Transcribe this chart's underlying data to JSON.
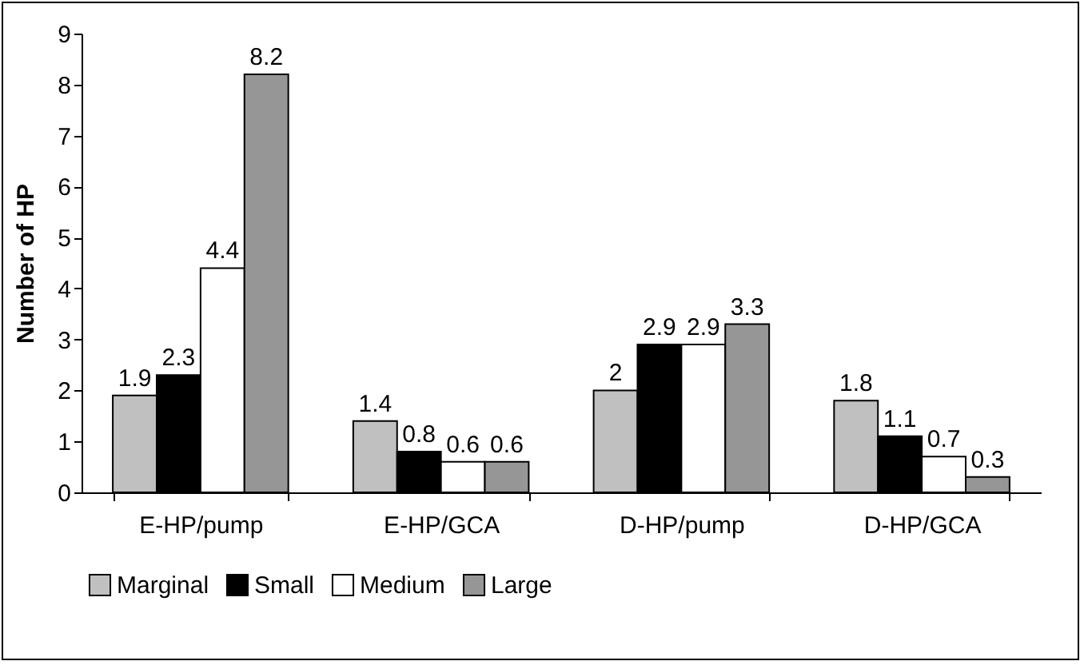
{
  "chart_data": {
    "type": "bar",
    "ylabel": "Number of HP",
    "categories": [
      "E-HP/pump",
      "E-HP/GCA",
      "D-HP/pump",
      "D-HP/GCA"
    ],
    "series": [
      {
        "name": "Marginal",
        "color": "#c0c0c0",
        "values": [
          1.9,
          1.4,
          2,
          1.8
        ]
      },
      {
        "name": "Small",
        "color": "#000000",
        "values": [
          2.3,
          0.8,
          2.9,
          1.1
        ]
      },
      {
        "name": "Medium",
        "color": "#ffffff",
        "values": [
          4.4,
          0.6,
          2.9,
          0.7
        ]
      },
      {
        "name": "Large",
        "color": "#969696",
        "values": [
          8.2,
          0.6,
          3.3,
          0.3
        ]
      }
    ],
    "ylim": [
      0,
      9
    ],
    "yticks": [
      0,
      1,
      2,
      3,
      4,
      5,
      6,
      7,
      8,
      9
    ],
    "grid": false,
    "legend": "bottom",
    "data_labels": true
  }
}
